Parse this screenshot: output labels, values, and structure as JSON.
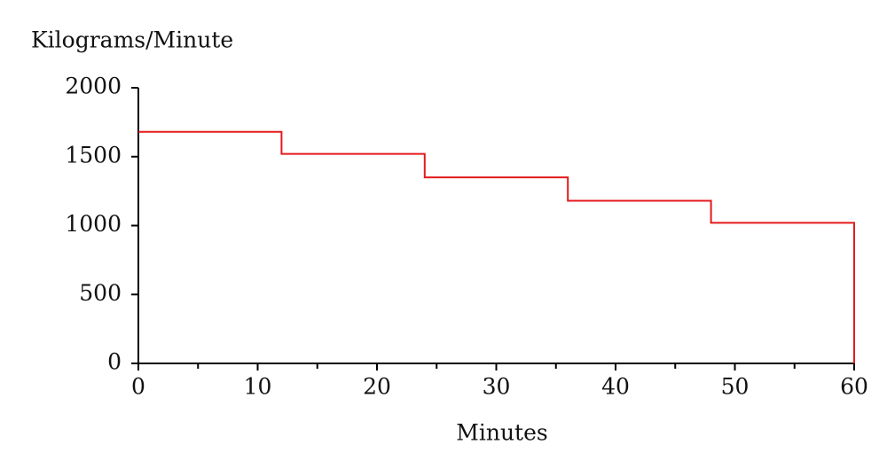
{
  "chart_data": {
    "type": "step",
    "y_axis_label": "Kilograms/Minute",
    "x_axis_label": "Minutes",
    "x": [
      0,
      12,
      24,
      36,
      48,
      60
    ],
    "series": [
      {
        "values": [
          1680,
          1520,
          1350,
          1180,
          1020,
          0
        ],
        "color": "#e31a1c"
      }
    ],
    "xlim": [
      0,
      60
    ],
    "xticks": [
      0,
      10,
      20,
      30,
      40,
      50,
      60
    ],
    "xminor_ticks": [
      5,
      15,
      25,
      35,
      45,
      55
    ],
    "ylim": [
      0,
      2000
    ],
    "yticks": [
      0,
      500,
      1000,
      1500,
      2000
    ],
    "grid": false
  }
}
